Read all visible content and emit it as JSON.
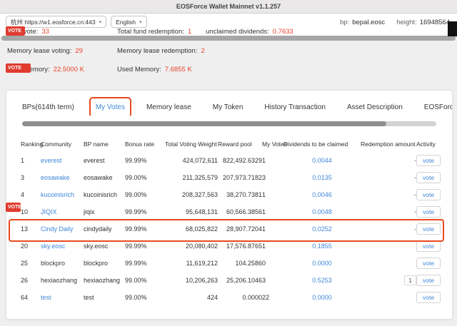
{
  "colors": {
    "annotation": "#e8491f",
    "stat_value": "#e8432c",
    "link": "#3f87d8"
  },
  "window": {
    "title": "EOSForce Wallet Mainnet v1.1.257"
  },
  "toolbar": {
    "node_select": {
      "value": "杭州 https://w1.eosforce.cn:443",
      "chevron": "▾"
    },
    "language_select": {
      "value": "English",
      "chevron": "▾"
    },
    "bp": {
      "label": "bp:",
      "value": "bepal.eosc"
    },
    "block_height": {
      "label": "height:",
      "value": "16948564"
    }
  },
  "badges": {
    "vote_label": "VOTE"
  },
  "stats": {
    "total_vote": {
      "label": "Total vote:",
      "value": "33"
    },
    "total_fund_redemption": {
      "label": "Total fund redemption:",
      "value": "1"
    },
    "unclaimed_dividends": {
      "label": "unclaimed dividends:",
      "value": "0.7633"
    },
    "memory_lease_voting": {
      "label": "Memory lease voting:",
      "value": "29"
    },
    "memory_lease_redemption": {
      "label": "Memory lease redemption:",
      "value": "2"
    },
    "total_memory": {
      "label": "Total Memory:",
      "value": "22.5000 K"
    },
    "used_memory": {
      "label": "Used Memory:",
      "value": "7.6855 K"
    }
  },
  "tabs": [
    {
      "label": "BPs(614th term)",
      "active": false
    },
    {
      "label": "My Votes",
      "active": true
    },
    {
      "label": "Memory lease",
      "active": false
    },
    {
      "label": "My Token",
      "active": false
    },
    {
      "label": "History Transaction",
      "active": false
    },
    {
      "label": "Asset Description",
      "active": false
    },
    {
      "label": "EOSForce",
      "active": false
    }
  ],
  "table": {
    "headers": [
      "Ranking",
      "Community",
      "BP name",
      "Bonus rate",
      "Total Voting Weight",
      "Reward pool",
      "My Votes",
      "Dividends to be claimed",
      "Redemption amount",
      "Activity"
    ],
    "vote_label": "vote",
    "rows": [
      {
        "ranking": "1",
        "community": "everest",
        "community_link": true,
        "bp_name": "everest",
        "bonus_rate": "99.99%",
        "total_voting_weight": "424,072,611",
        "reward_pool": "822,492.6329",
        "my_votes": "1",
        "dividends": "0.0044",
        "redemption": "-",
        "redemption_boxed": false,
        "highlighted": false
      },
      {
        "ranking": "3",
        "community": "eosawake",
        "community_link": true,
        "bp_name": "eosawake",
        "bonus_rate": "99.00%",
        "total_voting_weight": "211,325,579",
        "reward_pool": "207,973.7182",
        "my_votes": "3",
        "dividends": "0.0135",
        "redemption": "-",
        "redemption_boxed": false,
        "highlighted": false
      },
      {
        "ranking": "4",
        "community": "kucoinisrich",
        "community_link": true,
        "bp_name": "kucoinisrich",
        "bonus_rate": "99.00%",
        "total_voting_weight": "208,327,563",
        "reward_pool": "38,270.7381",
        "my_votes": "1",
        "dividends": "0.0046",
        "redemption": "-",
        "redemption_boxed": false,
        "highlighted": false
      },
      {
        "ranking": "10",
        "community": "JIQIX",
        "community_link": true,
        "bp_name": "jiqix",
        "bonus_rate": "99.99%",
        "total_voting_weight": "95,648,131",
        "reward_pool": "60,566.3856",
        "my_votes": "1",
        "dividends": "0.0048",
        "redemption": "-",
        "redemption_boxed": false,
        "highlighted": false
      },
      {
        "ranking": "13",
        "community": "Cindy Daily",
        "community_link": true,
        "bp_name": "cindydaily",
        "bonus_rate": "99.99%",
        "total_voting_weight": "68,025,822",
        "reward_pool": "28,907.7204",
        "my_votes": "1",
        "dividends": "0.0252",
        "redemption": "-",
        "redemption_boxed": false,
        "highlighted": true
      },
      {
        "ranking": "20",
        "community": "sky.eosc",
        "community_link": true,
        "bp_name": "sky.eosc",
        "bonus_rate": "99.99%",
        "total_voting_weight": "20,080,402",
        "reward_pool": "17,576.8765",
        "my_votes": "1",
        "dividends": "0.1855",
        "redemption": "",
        "redemption_boxed": false,
        "highlighted": false
      },
      {
        "ranking": "25",
        "community": "blockpro",
        "community_link": false,
        "bp_name": "blockpro",
        "bonus_rate": "99.99%",
        "total_voting_weight": "11,619,212",
        "reward_pool": "104.2586",
        "my_votes": "0",
        "dividends": "0.0000",
        "redemption": "",
        "redemption_boxed": false,
        "highlighted": false
      },
      {
        "ranking": "26",
        "community": "hexiaozhang",
        "community_link": false,
        "bp_name": "hexiaozhang",
        "bonus_rate": "99.00%",
        "total_voting_weight": "10,206,263",
        "reward_pool": "25,206.1046",
        "my_votes": "3",
        "dividends": "0.5253",
        "redemption": "1",
        "redemption_boxed": true,
        "highlighted": false
      },
      {
        "ranking": "64",
        "community": "test",
        "community_link": true,
        "bp_name": "test",
        "bonus_rate": "99.00%",
        "total_voting_weight": "424",
        "reward_pool": "0.0000",
        "my_votes": "22",
        "dividends": "0.0000",
        "redemption": "",
        "redemption_boxed": false,
        "highlighted": false
      }
    ]
  }
}
